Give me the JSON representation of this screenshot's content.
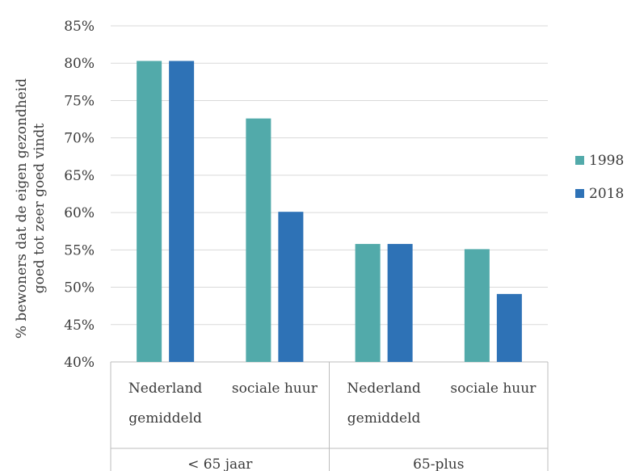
{
  "chart_data": {
    "type": "bar",
    "ylabel_line1": "% bewoners dat de eigen gezondheid",
    "ylabel_line2": "goed tot zeer goed vindt",
    "ylim": [
      0.4,
      0.85
    ],
    "y_ticks": [
      "40%",
      "45%",
      "50%",
      "55%",
      "60%",
      "65%",
      "70%",
      "75%",
      "80%",
      "85%"
    ],
    "categories": [
      [
        "Nederland",
        "gemiddeld"
      ],
      [
        "sociale huur"
      ],
      [
        "Nederland",
        "gemiddeld"
      ],
      [
        "sociale huur"
      ]
    ],
    "groups": [
      {
        "label": "< 65 jaar",
        "span": [
          0,
          1
        ]
      },
      {
        "label": "65-plus",
        "span": [
          2,
          3
        ]
      }
    ],
    "series": [
      {
        "name": "1998",
        "color": "#52aaaa",
        "values": [
          0.803,
          0.726,
          0.558,
          0.551
        ]
      },
      {
        "name": "2018",
        "color": "#2e72b6",
        "values": [
          0.803,
          0.601,
          0.558,
          0.491
        ]
      }
    ],
    "grid": true,
    "legend": "right"
  }
}
